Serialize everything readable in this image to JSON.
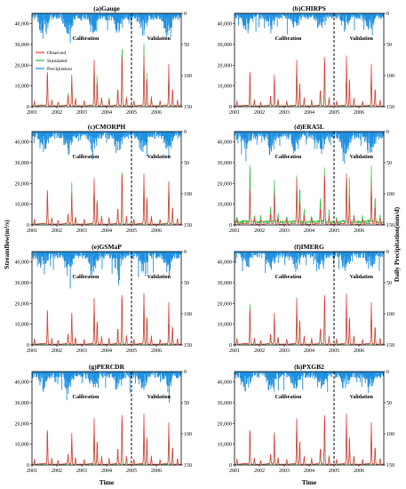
{
  "figure": {
    "ylabel_left": "Streamflow(m³/s)",
    "ylabel_right": "Daily Precipitation(mm/d)",
    "xlabel": "Time"
  },
  "legend": [
    {
      "name": "Observed",
      "color": "#e8343b"
    },
    {
      "name": "Simulated",
      "color": "#2fbe3a"
    },
    {
      "name": "Precipitation",
      "color": "#1e90e0"
    }
  ],
  "period_labels": {
    "calibration": "Calibration",
    "validation": "Validation"
  },
  "colors": {
    "observed": "#e8343b",
    "simulated": "#2fbe3a",
    "precipitation": "#1e90e0",
    "divider": "#000000"
  },
  "chart_data": [
    {
      "type": "line",
      "title": "(a)Gauge",
      "simulated_scale": 1.0,
      "precip_scale": 1.0
    },
    {
      "type": "line",
      "title": "(b)CHIRPS",
      "simulated_scale": 0.75,
      "precip_scale": 0.8
    },
    {
      "type": "line",
      "title": "(c)CMORPH",
      "simulated_scale": 0.95,
      "precip_scale": 1.0
    },
    {
      "type": "line",
      "title": "(d)ERA5L",
      "simulated_scale": 1.25,
      "precip_scale": 1.1
    },
    {
      "type": "line",
      "title": "(e)GSMaP",
      "simulated_scale": 0.8,
      "precip_scale": 1.0
    },
    {
      "type": "line",
      "title": "(f)IMERG",
      "simulated_scale": 0.85,
      "precip_scale": 0.9
    },
    {
      "type": "line",
      "title": "(g)PERCDR",
      "simulated_scale": 0.7,
      "precip_scale": 0.9
    },
    {
      "type": "line",
      "title": "(h)PXGB2",
      "simulated_scale": 0.75,
      "precip_scale": 0.9
    }
  ],
  "shared_axes": {
    "x_ticks": [
      "2001",
      "2002",
      "2003",
      "2004",
      "2005",
      "2006"
    ],
    "x_range": [
      2001,
      2007
    ],
    "split_year": 2005,
    "y_left_ticks": [
      0,
      10000,
      20000,
      30000,
      40000
    ],
    "y_left_tick_labels": [
      "0",
      "10,000",
      "20,000",
      "30,000",
      "40,000"
    ],
    "y_left_range": [
      0,
      45000
    ],
    "y_right_ticks": [
      0,
      50,
      100,
      150
    ],
    "y_right_range": [
      0,
      150
    ],
    "y_right_inverted": true
  },
  "observed_peaks": [
    {
      "year": 2001.1,
      "q": 2500
    },
    {
      "year": 2001.62,
      "q": 18000
    },
    {
      "year": 2001.8,
      "q": 3000
    },
    {
      "year": 2002.05,
      "q": 2000
    },
    {
      "year": 2002.45,
      "q": 5000
    },
    {
      "year": 2002.6,
      "q": 15000
    },
    {
      "year": 2002.75,
      "q": 3500
    },
    {
      "year": 2003.1,
      "q": 2500
    },
    {
      "year": 2003.5,
      "q": 22000
    },
    {
      "year": 2003.62,
      "q": 12000
    },
    {
      "year": 2003.8,
      "q": 4000
    },
    {
      "year": 2004.1,
      "q": 3000
    },
    {
      "year": 2004.45,
      "q": 8000
    },
    {
      "year": 2004.62,
      "q": 26000
    },
    {
      "year": 2004.8,
      "q": 4000
    },
    {
      "year": 2005.1,
      "q": 2500
    },
    {
      "year": 2005.5,
      "q": 24000
    },
    {
      "year": 2005.62,
      "q": 14000
    },
    {
      "year": 2005.8,
      "q": 4000
    },
    {
      "year": 2006.15,
      "q": 2500
    },
    {
      "year": 2006.5,
      "q": 20000
    },
    {
      "year": 2006.65,
      "q": 9000
    },
    {
      "year": 2006.85,
      "q": 3000
    }
  ]
}
